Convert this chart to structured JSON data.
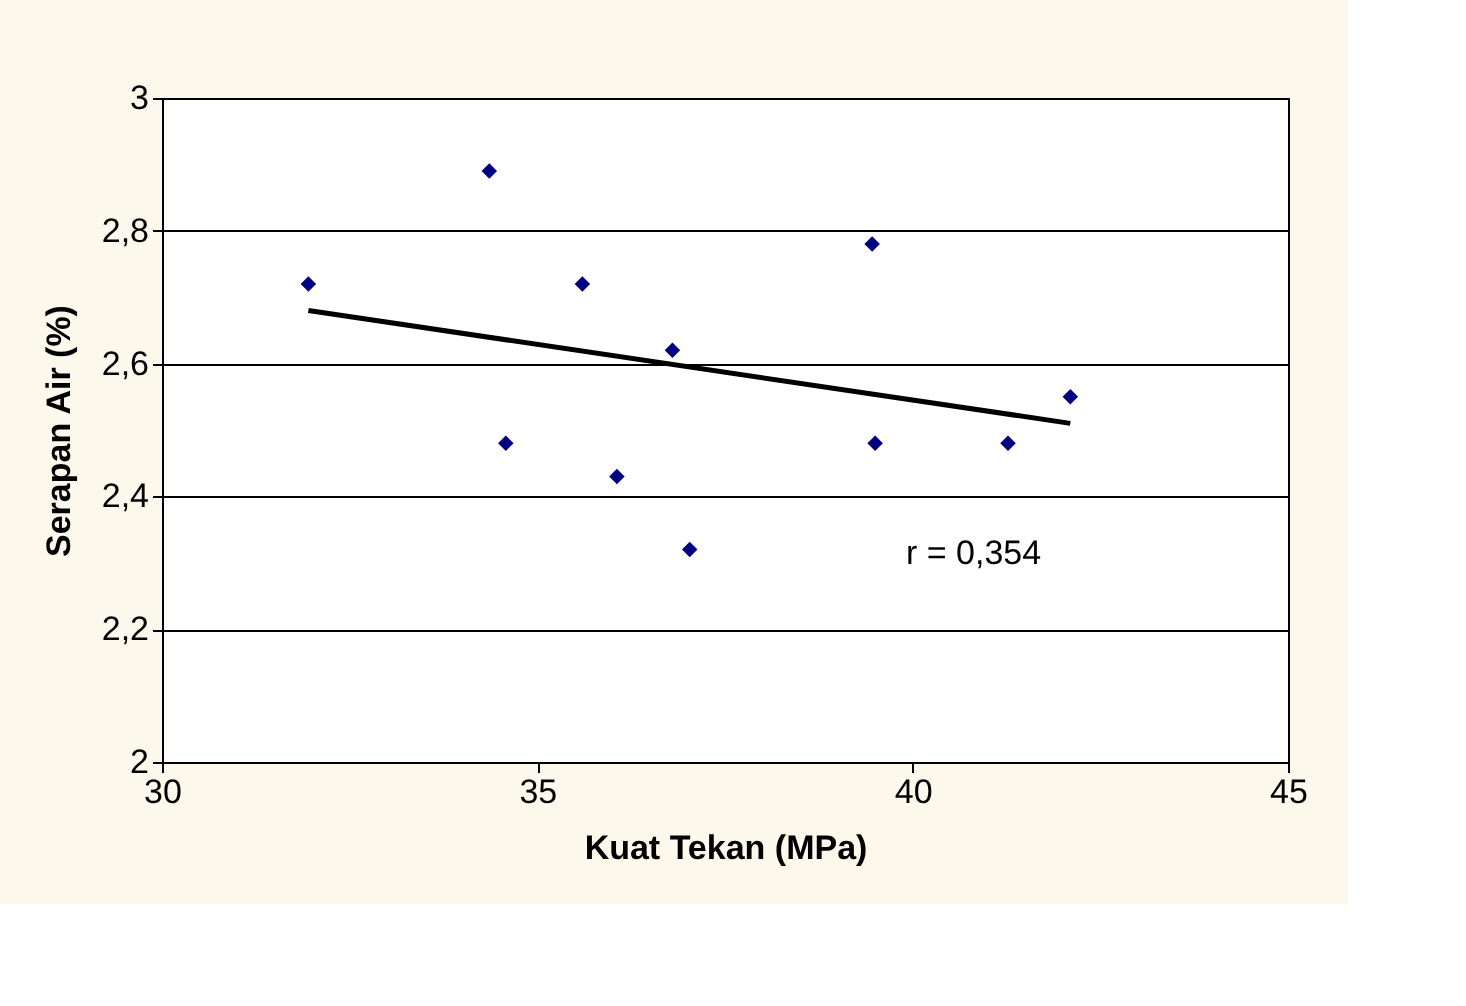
{
  "chart_data": {
    "type": "scatter",
    "xlabel": "Kuat Tekan (MPa)",
    "ylabel": "Serapan Air (%)",
    "xlim": [
      30,
      45
    ],
    "xticks": [
      30,
      35,
      40,
      45
    ],
    "ylim": [
      2,
      3
    ],
    "yticks": [
      {
        "value": 2,
        "label": "2"
      },
      {
        "value": 2.2,
        "label": "2,2"
      },
      {
        "value": 2.4,
        "label": "2,4"
      },
      {
        "value": 2.6,
        "label": "2,6"
      },
      {
        "value": 2.8,
        "label": "2,8"
      },
      {
        "value": 3,
        "label": "3"
      }
    ],
    "grid": "y",
    "series": [
      {
        "color": "#000080",
        "marker": "diamond",
        "x": [
          31.95,
          34.36,
          35.6,
          36.8,
          34.58,
          36.06,
          37.03,
          39.46,
          39.5,
          41.27,
          42.1
        ],
        "values": [
          2.72,
          2.89,
          2.72,
          2.62,
          2.48,
          2.43,
          2.32,
          2.78,
          2.48,
          2.48,
          2.55
        ]
      },
      {
        "type": "line",
        "color": "#000000",
        "marker": "none",
        "line_style": "solid",
        "x": [
          31.95,
          42.1
        ],
        "values": [
          2.68,
          2.51
        ]
      }
    ],
    "annotations": [
      "r = 0,354"
    ]
  }
}
